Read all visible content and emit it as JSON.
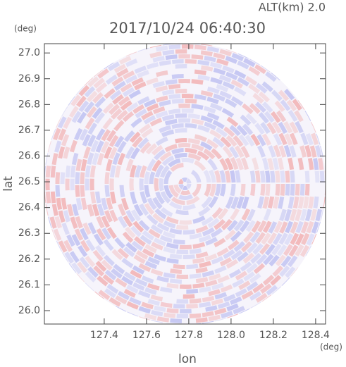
{
  "chart_data": {
    "type": "radar-field",
    "title": "2017/10/24 06:40:30",
    "subtitle": "ALT(km) 2.0",
    "x_label": "lon",
    "y_label": "lat",
    "x_unit": "(deg)",
    "y_unit": "(deg)",
    "xlim": [
      127.117,
      128.447
    ],
    "ylim": [
      25.948,
      27.036
    ],
    "xticks": [
      127.4,
      127.6,
      127.8,
      {
        "value": 128.0,
        "label": "128.0"
      },
      128.2,
      128.4
    ],
    "yticks": [
      {
        "value": 26.0,
        "label": "26.0"
      },
      26.1,
      26.2,
      26.3,
      26.4,
      26.5,
      26.6,
      26.7,
      26.8,
      26.9,
      {
        "value": 27.0,
        "label": "27.0"
      }
    ]
  }
}
